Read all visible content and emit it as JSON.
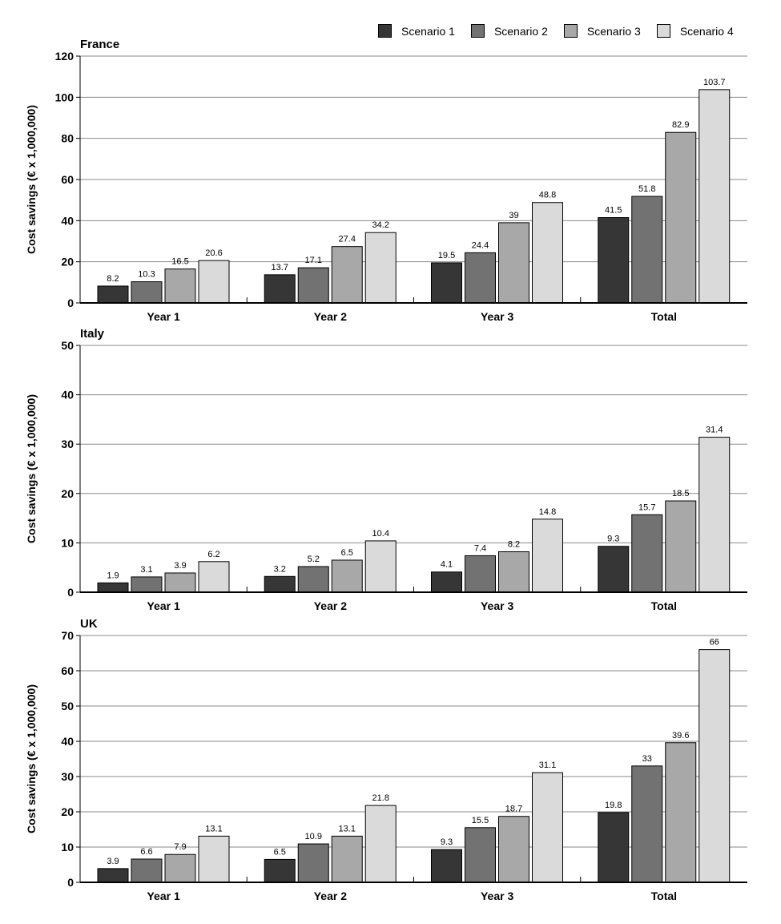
{
  "legend": {
    "position": "top-right",
    "items": [
      {
        "name": "Scenario 1",
        "color": "#363636"
      },
      {
        "name": "Scenario 2",
        "color": "#727272"
      },
      {
        "name": "Scenario 3",
        "color": "#a8a8a8"
      },
      {
        "name": "Scenario 4",
        "color": "#dadada"
      }
    ]
  },
  "chart_data": [
    {
      "type": "bar",
      "title": "France",
      "xlabel": "",
      "ylabel": "Cost savings (€ x 1,000,000)",
      "ylim": [
        0,
        120
      ],
      "yticks": [
        0,
        20,
        40,
        60,
        80,
        100,
        120
      ],
      "grid": true,
      "categories": [
        "Year 1",
        "Year 2",
        "Year 3",
        "Total"
      ],
      "series": [
        {
          "name": "Scenario 1",
          "values": [
            8.2,
            13.7,
            19.5,
            41.5
          ],
          "labels": [
            "8.2",
            "13.7",
            "19.5",
            "41.5"
          ]
        },
        {
          "name": "Scenario 2",
          "values": [
            10.3,
            17.1,
            24.4,
            51.8
          ],
          "labels": [
            "10.3",
            "17.1",
            "24.4",
            "51.8"
          ]
        },
        {
          "name": "Scenario 3",
          "values": [
            16.5,
            27.4,
            39,
            82.9
          ],
          "labels": [
            "16.5",
            "27.4",
            "39",
            "82.9"
          ]
        },
        {
          "name": "Scenario 4",
          "values": [
            20.6,
            34.2,
            48.8,
            103.7
          ],
          "labels": [
            "20.6",
            "34.2",
            "48.8",
            "103.7"
          ]
        }
      ]
    },
    {
      "type": "bar",
      "title": "Italy",
      "xlabel": "",
      "ylabel": "Cost savings (€ x 1,000,000)",
      "ylim": [
        0,
        50
      ],
      "yticks": [
        0,
        10,
        20,
        30,
        40,
        50
      ],
      "grid": true,
      "categories": [
        "Year 1",
        "Year 2",
        "Year 3",
        "Total"
      ],
      "series": [
        {
          "name": "Scenario 1",
          "values": [
            1.9,
            3.2,
            4.1,
            9.3
          ],
          "labels": [
            "1.9",
            "3.2",
            "4.1",
            "9.3"
          ]
        },
        {
          "name": "Scenario 2",
          "values": [
            3.1,
            5.2,
            7.4,
            15.7
          ],
          "labels": [
            "3.1",
            "5.2",
            "7.4",
            "15.7"
          ]
        },
        {
          "name": "Scenario 3",
          "values": [
            3.9,
            6.5,
            8.2,
            18.5
          ],
          "labels": [
            "3.9",
            "6.5",
            "8.2",
            "18.5"
          ]
        },
        {
          "name": "Scenario 4",
          "values": [
            6.2,
            10.4,
            14.8,
            31.4
          ],
          "labels": [
            "6.2",
            "10.4",
            "14.8",
            "31.4"
          ]
        }
      ]
    },
    {
      "type": "bar",
      "title": "UK",
      "xlabel": "",
      "ylabel": "Cost savings (€ x 1,000,000)",
      "ylim": [
        0,
        70
      ],
      "yticks": [
        0,
        10,
        20,
        30,
        40,
        50,
        60,
        70
      ],
      "grid": true,
      "categories": [
        "Year 1",
        "Year 2",
        "Year 3",
        "Total"
      ],
      "series": [
        {
          "name": "Scenario 1",
          "values": [
            3.9,
            6.5,
            9.3,
            19.8
          ],
          "labels": [
            "3.9",
            "6.5",
            "9.3",
            "19.8"
          ]
        },
        {
          "name": "Scenario 2",
          "values": [
            6.6,
            10.9,
            15.5,
            33
          ],
          "labels": [
            "6.6",
            "10.9",
            "15.5",
            "33"
          ]
        },
        {
          "name": "Scenario 3",
          "values": [
            7.9,
            13.1,
            18.7,
            39.6
          ],
          "labels": [
            "7.9",
            "13.1",
            "18.7",
            "39.6"
          ]
        },
        {
          "name": "Scenario 4",
          "values": [
            13.1,
            21.8,
            31.1,
            66
          ],
          "labels": [
            "13.1",
            "21.8",
            "31.1",
            "66"
          ]
        }
      ]
    }
  ]
}
